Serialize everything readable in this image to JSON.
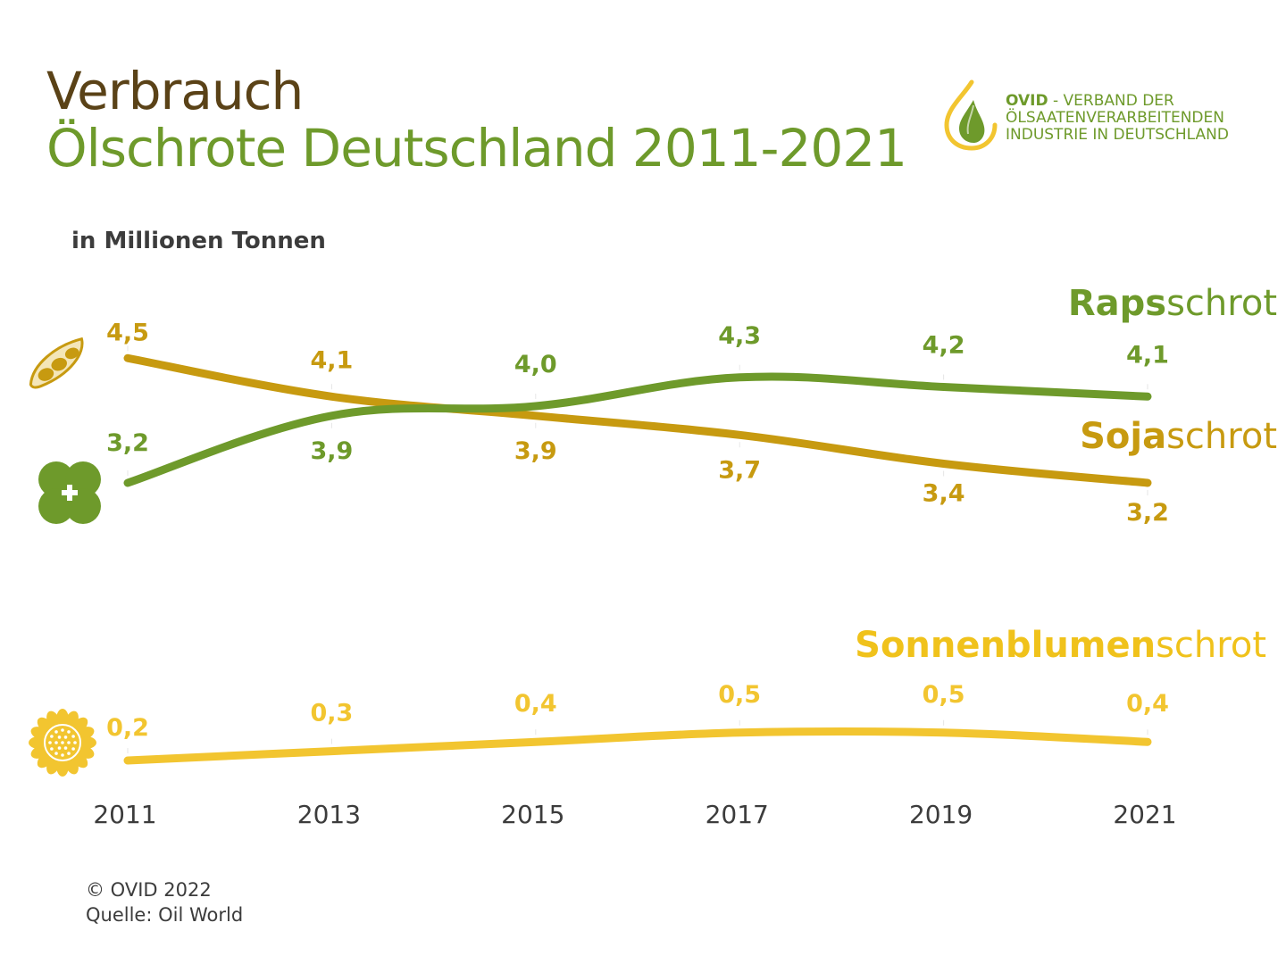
{
  "header": {
    "title_line1": "Verbrauch",
    "title_line2": "Ölschrote Deutschland 2011-2021",
    "unit": "in Millionen Tonnen"
  },
  "logo": {
    "brand": "OVID",
    "line1": " - VERBAND DER",
    "line2": "ÖLSAATENVERARBEITENDEN",
    "line3": "INDUSTRIE IN DEUTSCHLAND"
  },
  "labels": {
    "raps_bold": "Raps",
    "raps_rest": "schrot",
    "soja_bold": "Soja",
    "soja_rest": "schrot",
    "sonne_bold": "Sonnenblumen",
    "sonne_rest": "schrot"
  },
  "footer": {
    "copyright": "© OVID 2022",
    "source": "Quelle: Oil World"
  },
  "colors": {
    "raps": "#6e9a2b",
    "soja": "#c79a10",
    "sonne": "#f2c530",
    "sonne_label": "#f0c21b",
    "axis_text": "#3c3c3c"
  },
  "icons": [
    "soy-pod-icon",
    "rapeseed-flower-icon",
    "sunflower-icon",
    "oil-drop-logo-icon"
  ],
  "chart_data": {
    "type": "line",
    "title": "Verbrauch Ölschrote Deutschland 2011-2021",
    "ylabel": "in Millionen Tonnen",
    "x": [
      2011,
      2013,
      2015,
      2017,
      2019,
      2021
    ],
    "tick_labels": [
      "2011",
      "2013",
      "2015",
      "2017",
      "2019",
      "2021"
    ],
    "grid": false,
    "series": [
      {
        "name": "Rapsschrot",
        "key": "raps",
        "values": [
          3.2,
          3.9,
          4.0,
          4.3,
          4.2,
          4.1
        ],
        "value_labels": [
          "3,2",
          "3,9",
          "4,0",
          "4,3",
          "4,2",
          "4,1"
        ]
      },
      {
        "name": "Sojaschrot",
        "key": "soja",
        "values": [
          4.5,
          4.1,
          3.9,
          3.7,
          3.4,
          3.2
        ],
        "value_labels": [
          "4,5",
          "4,1",
          "3,9",
          "3,7",
          "3,4",
          "3,2"
        ]
      },
      {
        "name": "Sonnenblumenschrot",
        "key": "sonne",
        "values": [
          0.2,
          0.3,
          0.4,
          0.5,
          0.5,
          0.4
        ],
        "value_labels": [
          "0,2",
          "0,3",
          "0,4",
          "0,5",
          "0,5",
          "0,4"
        ]
      }
    ]
  }
}
